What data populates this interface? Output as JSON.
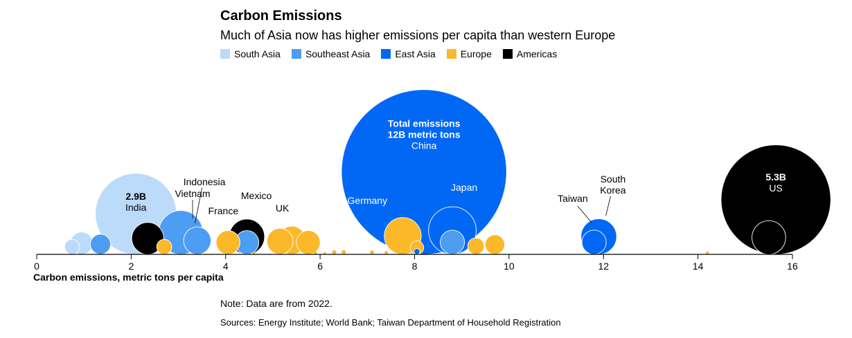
{
  "title": "Carbon Emissions",
  "subtitle": "Much of Asia now has higher emissions per capita than western Europe",
  "note": "Note: Data are from 2022.",
  "sources": "Sources: Energy Institute; World Bank; Taiwan Department of Household Registration",
  "colors": {
    "south_asia": "#bcdaf9",
    "southeast_asia": "#4d9df2",
    "east_asia": "#0068f5",
    "europe": "#fbb829",
    "americas": "#000000"
  },
  "chart_data": {
    "type": "scatter",
    "xlabel": "Carbon emissions, metric tons per capita",
    "xlim": [
      0,
      16
    ],
    "xticks": [
      "0",
      "2",
      "4",
      "6",
      "8",
      "10",
      "12",
      "14",
      "16"
    ],
    "legend": [
      {
        "label": "South Asia",
        "color": "#bcdaf9"
      },
      {
        "label": "Southeast Asia",
        "color": "#4d9df2"
      },
      {
        "label": "East Asia",
        "color": "#0068f5"
      },
      {
        "label": "Europe",
        "color": "#fbb829"
      },
      {
        "label": "Americas",
        "color": "#000000"
      }
    ],
    "bubbles": [
      {
        "x": 15.65,
        "total": 5.3,
        "region": "americas"
      },
      {
        "x": 15.5,
        "total": 0.5,
        "region": "americas"
      },
      {
        "x": 8.2,
        "total": 12.0,
        "region": "east_asia"
      },
      {
        "x": 8.8,
        "total": 1.0,
        "region": "east_asia"
      },
      {
        "x": 11.9,
        "total": 0.56,
        "region": "east_asia"
      },
      {
        "x": 11.8,
        "total": 0.26,
        "region": "east_asia"
      },
      {
        "x": 8.05,
        "total": 0.015,
        "region": "east_asia"
      },
      {
        "x": 2.1,
        "total": 2.9,
        "region": "south_asia"
      },
      {
        "x": 0.95,
        "total": 0.22,
        "region": "south_asia"
      },
      {
        "x": 0.75,
        "total": 0.1,
        "region": "south_asia"
      },
      {
        "x": 3.05,
        "total": 0.85,
        "region": "southeast_asia"
      },
      {
        "x": 3.4,
        "total": 0.33,
        "region": "southeast_asia"
      },
      {
        "x": 4.45,
        "total": 0.25,
        "region": "southeast_asia"
      },
      {
        "x": 1.35,
        "total": 0.18,
        "region": "southeast_asia"
      },
      {
        "x": 8.8,
        "total": 0.26,
        "region": "southeast_asia"
      },
      {
        "x": 4.45,
        "total": 0.55,
        "region": "americas"
      },
      {
        "x": 2.35,
        "total": 0.45,
        "region": "americas"
      },
      {
        "x": 7.75,
        "total": 0.6,
        "region": "europe"
      },
      {
        "x": 5.4,
        "total": 0.35,
        "region": "europe"
      },
      {
        "x": 5.15,
        "total": 0.3,
        "region": "europe"
      },
      {
        "x": 5.75,
        "total": 0.25,
        "region": "europe"
      },
      {
        "x": 4.05,
        "total": 0.25,
        "region": "europe"
      },
      {
        "x": 9.7,
        "total": 0.17,
        "region": "europe"
      },
      {
        "x": 9.3,
        "total": 0.12,
        "region": "europe"
      },
      {
        "x": 2.7,
        "total": 0.1,
        "region": "europe"
      },
      {
        "x": 8.05,
        "total": 0.08,
        "region": "europe"
      },
      {
        "x": 6.5,
        "total": 0.008,
        "region": "europe"
      },
      {
        "x": 6.3,
        "total": 0.008,
        "region": "europe"
      },
      {
        "x": 7.1,
        "total": 0.007,
        "region": "europe"
      },
      {
        "x": 7.4,
        "total": 0.005,
        "region": "europe"
      },
      {
        "x": 14.2,
        "total": 0.004,
        "region": "europe"
      },
      {
        "x": 5.9,
        "total": 0.004,
        "region": "europe"
      },
      {
        "x": 4.6,
        "total": 0.003,
        "region": "europe"
      },
      {
        "x": 6.1,
        "total": 0.002,
        "region": "europe"
      }
    ],
    "annotations": [
      {
        "x": 8.2,
        "total": 12.0,
        "lines": [
          "Total emissions",
          "12B metric tons"
        ],
        "bold": true,
        "sub": "China"
      },
      {
        "x": 15.65,
        "total": 5.3,
        "lines": [
          "5.3B"
        ],
        "bold": true,
        "sub": "US"
      },
      {
        "x": 2.1,
        "total": 2.9,
        "lines": [
          "2.9B"
        ],
        "bold": true,
        "sub": "India"
      }
    ],
    "labels": [
      {
        "text": "Indonesia",
        "x": 3.55,
        "dy": 100
      },
      {
        "text": "Vietnam",
        "x": 3.3,
        "dy": 83
      },
      {
        "text": "Mexico",
        "x": 4.65,
        "dy": 80
      },
      {
        "text": "France",
        "x": 3.95,
        "dy": 58
      },
      {
        "text": "UK",
        "x": 5.2,
        "dy": 62
      },
      {
        "text": "Germany",
        "x": 7.0,
        "dy": 73
      },
      {
        "text": "Japan",
        "x": 9.05,
        "dy": 92
      },
      {
        "text": "Taiwan",
        "x": 11.35,
        "dy": 76
      },
      {
        "text": "South",
        "x": 12.2,
        "dy": 104
      },
      {
        "text": "Korea",
        "x": 12.2,
        "dy": 88
      }
    ]
  }
}
